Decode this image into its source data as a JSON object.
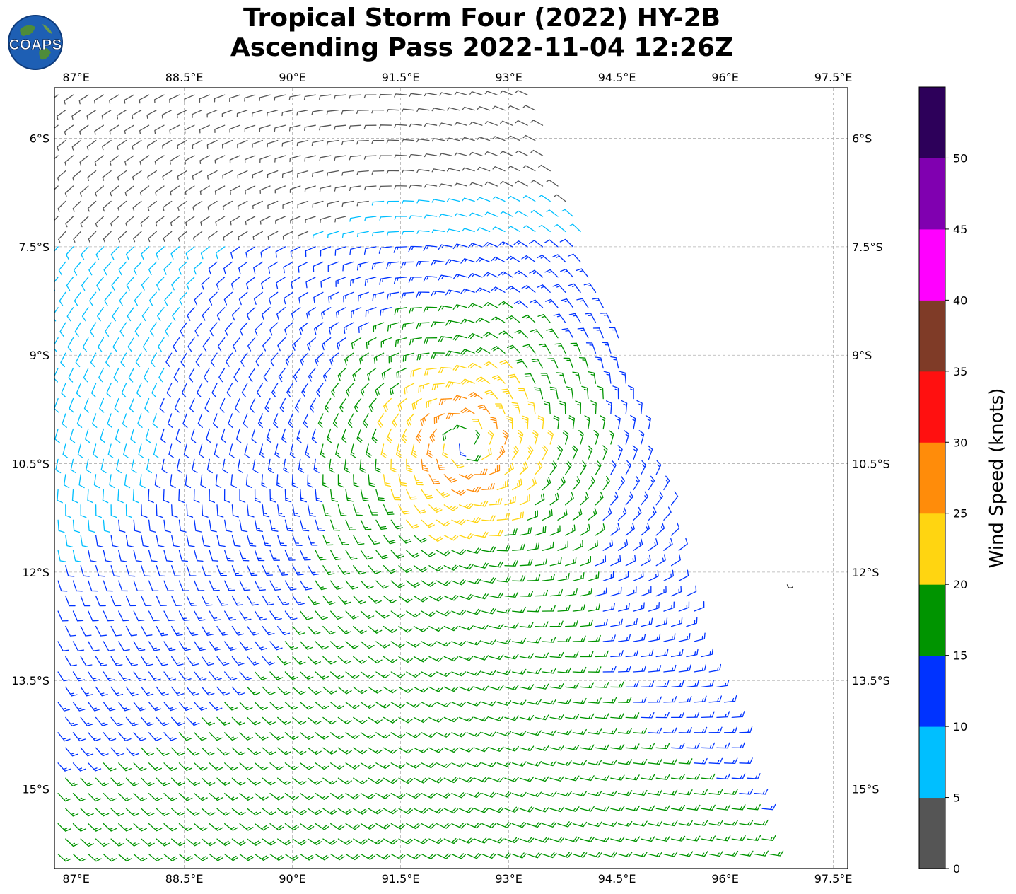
{
  "title": {
    "line1": "Tropical Storm Four (2022) HY-2B",
    "line2": "Ascending Pass 2022-11-04 12:26Z"
  },
  "logo": {
    "text": "COAPS",
    "icon": "globe-icon"
  },
  "map": {
    "projection": "plate-carree",
    "lon_range": [
      86.7,
      97.7
    ],
    "lat_range": [
      -16.1,
      -5.3
    ],
    "lon_ticks": [
      "87°E",
      "88.5°E",
      "90°E",
      "91.5°E",
      "93°E",
      "94.5°E",
      "96°E",
      "97.5°E"
    ],
    "lon_tick_values": [
      87,
      88.5,
      90,
      91.5,
      93,
      94.5,
      96,
      97.5
    ],
    "lat_ticks": [
      "6°S",
      "7.5°S",
      "9°S",
      "10.5°S",
      "12°S",
      "13.5°S",
      "15°S"
    ],
    "lat_tick_values": [
      -6,
      -7.5,
      -9,
      -10.5,
      -12,
      -13.5,
      -15
    ],
    "gridlines": true,
    "storm_center": {
      "lon": 92.4,
      "lat": -10.2
    },
    "island": {
      "lon": 96.9,
      "lat": -12.2
    },
    "swath_edge": [
      [
        86.7,
        -5.3
      ],
      [
        93.3,
        -5.3
      ],
      [
        94.6,
        -8.9
      ],
      [
        95.3,
        -11.2
      ],
      [
        95.6,
        -12.6
      ],
      [
        96.2,
        -14.2
      ],
      [
        96.8,
        -16.1
      ],
      [
        86.7,
        -16.1
      ]
    ]
  },
  "colorbar": {
    "label": "Wind Speed (knots)",
    "ticks": [
      "0",
      "5",
      "10",
      "15",
      "20",
      "25",
      "30",
      "35",
      "40",
      "45",
      "50"
    ],
    "bins": [
      {
        "min": 0,
        "max": 5,
        "color": "#555555"
      },
      {
        "min": 5,
        "max": 10,
        "color": "#00bfff"
      },
      {
        "min": 10,
        "max": 15,
        "color": "#0033ff"
      },
      {
        "min": 15,
        "max": 20,
        "color": "#009400"
      },
      {
        "min": 20,
        "max": 25,
        "color": "#ffd511"
      },
      {
        "min": 25,
        "max": 30,
        "color": "#ff8c0a"
      },
      {
        "min": 30,
        "max": 35,
        "color": "#ff1010"
      },
      {
        "min": 35,
        "max": 40,
        "color": "#7f3b27"
      },
      {
        "min": 40,
        "max": 45,
        "color": "#ff00ff"
      },
      {
        "min": 45,
        "max": 50,
        "color": "#8000b0"
      },
      {
        "min": 50,
        "max": 55,
        "color": "#2d005a"
      }
    ]
  }
}
